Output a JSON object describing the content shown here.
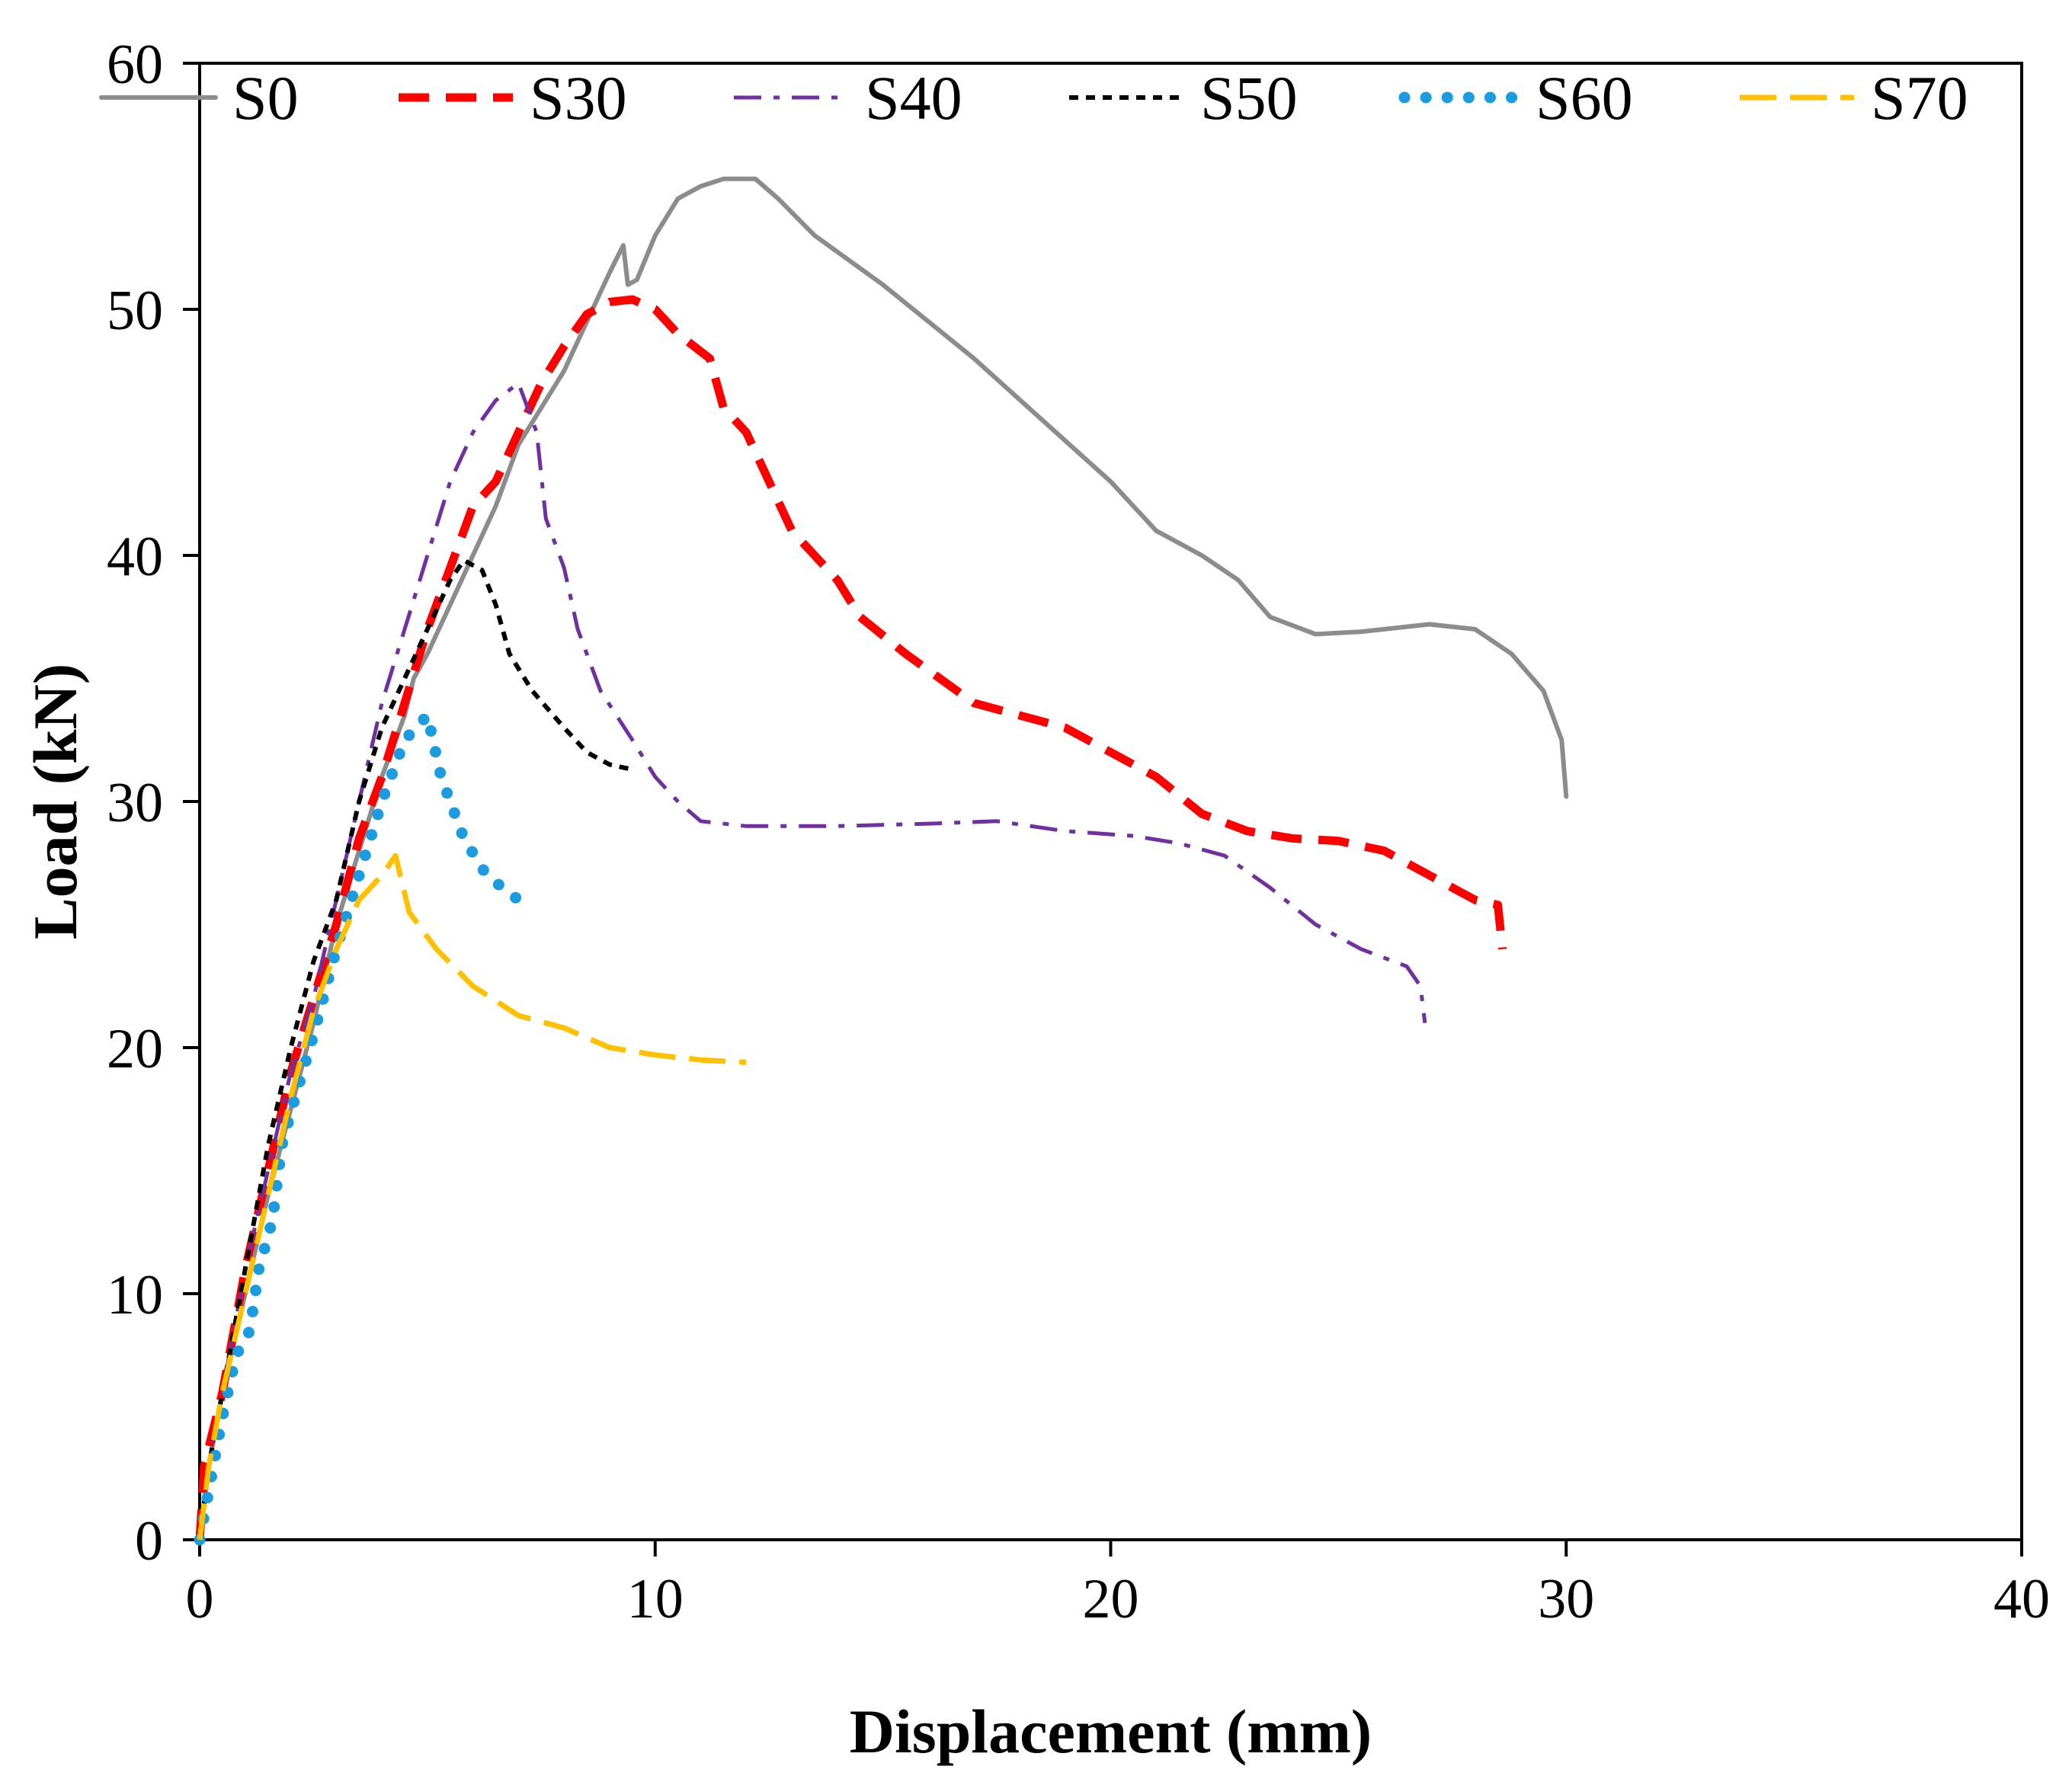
{
  "chart_data": {
    "type": "line",
    "title": "",
    "xlabel": "Displacement (mm)",
    "ylabel": "Load (kN)",
    "xlim": [
      0,
      40
    ],
    "ylim": [
      0,
      60
    ],
    "xticks": [
      0,
      10,
      20,
      30,
      40
    ],
    "yticks": [
      0,
      10,
      20,
      30,
      40,
      50,
      60
    ],
    "grid": false,
    "legend_position": "top",
    "series": [
      {
        "name": "S0",
        "color": "#8c8c8c",
        "style": "solid",
        "points": [
          [
            0,
            0
          ],
          [
            0.2,
            3
          ],
          [
            0.5,
            6
          ],
          [
            1,
            10
          ],
          [
            1.5,
            14
          ],
          [
            2,
            17.5
          ],
          [
            2.5,
            21
          ],
          [
            3,
            25
          ],
          [
            3.5,
            28
          ],
          [
            4,
            31
          ],
          [
            4.5,
            33.5
          ],
          [
            4.7,
            35
          ],
          [
            5,
            36
          ],
          [
            5.5,
            38
          ],
          [
            6,
            40
          ],
          [
            6.5,
            42
          ],
          [
            7,
            44.5
          ],
          [
            7.5,
            46
          ],
          [
            8,
            47.5
          ],
          [
            8.5,
            49.5
          ],
          [
            9,
            51.5
          ],
          [
            9.3,
            52.6
          ],
          [
            9.4,
            51
          ],
          [
            9.6,
            51.2
          ],
          [
            10,
            53
          ],
          [
            10.5,
            54.5
          ],
          [
            11,
            55
          ],
          [
            11.5,
            55.3
          ],
          [
            12.2,
            55.3
          ],
          [
            12.7,
            54.5
          ],
          [
            13.5,
            53
          ],
          [
            15,
            51
          ],
          [
            17,
            48
          ],
          [
            18.5,
            45.5
          ],
          [
            20,
            43
          ],
          [
            21,
            41
          ],
          [
            22,
            40
          ],
          [
            22.8,
            39
          ],
          [
            23.5,
            37.5
          ],
          [
            24.5,
            36.8
          ],
          [
            25.5,
            36.9
          ],
          [
            27,
            37.2
          ],
          [
            28,
            37
          ],
          [
            28.8,
            36
          ],
          [
            29.5,
            34.5
          ],
          [
            29.9,
            32.5
          ],
          [
            30,
            30.2
          ]
        ]
      },
      {
        "name": "S30",
        "color": "#ff0000",
        "style": "dashed",
        "points": [
          [
            0,
            0
          ],
          [
            0.1,
            3
          ],
          [
            0.5,
            6
          ],
          [
            1,
            11
          ],
          [
            1.5,
            15
          ],
          [
            2,
            19
          ],
          [
            2.5,
            22
          ],
          [
            3,
            25
          ],
          [
            3.5,
            28.5
          ],
          [
            4,
            31
          ],
          [
            4.5,
            34
          ],
          [
            5,
            37
          ],
          [
            5.5,
            39.5
          ],
          [
            6,
            42
          ],
          [
            6.5,
            43
          ],
          [
            7,
            45
          ],
          [
            7.5,
            47
          ],
          [
            8,
            48.5
          ],
          [
            8.5,
            49.8
          ],
          [
            9,
            50.3
          ],
          [
            9.5,
            50.4
          ],
          [
            10,
            50
          ],
          [
            10.5,
            49
          ],
          [
            11.2,
            48
          ],
          [
            11.5,
            46
          ],
          [
            12,
            45
          ],
          [
            12.5,
            43
          ],
          [
            13,
            41
          ],
          [
            14,
            39
          ],
          [
            14.5,
            37.5
          ],
          [
            15.5,
            36
          ],
          [
            17,
            34
          ],
          [
            18,
            33.5
          ],
          [
            19,
            33
          ],
          [
            20,
            32
          ],
          [
            21,
            31
          ],
          [
            22,
            29.5
          ],
          [
            23,
            28.8
          ],
          [
            24,
            28.5
          ],
          [
            25,
            28.4
          ],
          [
            26,
            28
          ],
          [
            27,
            27
          ],
          [
            28,
            26
          ],
          [
            28.5,
            25.8
          ],
          [
            28.6,
            24
          ]
        ]
      },
      {
        "name": "S40",
        "color": "#7030a0",
        "style": "dashdot",
        "points": [
          [
            0,
            0
          ],
          [
            0.2,
            3
          ],
          [
            0.5,
            6
          ],
          [
            1,
            11
          ],
          [
            1.5,
            15
          ],
          [
            2,
            19
          ],
          [
            2.5,
            22
          ],
          [
            3,
            26
          ],
          [
            3.5,
            30
          ],
          [
            4,
            34
          ],
          [
            4.5,
            37
          ],
          [
            5,
            40
          ],
          [
            5.5,
            43
          ],
          [
            6,
            45
          ],
          [
            6.5,
            46.3
          ],
          [
            7,
            47
          ],
          [
            7.4,
            45
          ],
          [
            7.6,
            41.5
          ],
          [
            8,
            39.5
          ],
          [
            8.3,
            37
          ],
          [
            8.8,
            34.5
          ],
          [
            9.5,
            32.5
          ],
          [
            10,
            31
          ],
          [
            10.5,
            30
          ],
          [
            11,
            29.2
          ],
          [
            12,
            29
          ],
          [
            14,
            29
          ],
          [
            16,
            29.1
          ],
          [
            17.5,
            29.2
          ],
          [
            19,
            28.8
          ],
          [
            20.5,
            28.6
          ],
          [
            21.5,
            28.3
          ],
          [
            22.5,
            27.8
          ],
          [
            23.5,
            26.5
          ],
          [
            24.5,
            25
          ],
          [
            25.5,
            24
          ],
          [
            26.5,
            23.3
          ],
          [
            26.8,
            22.5
          ],
          [
            26.9,
            21
          ]
        ]
      },
      {
        "name": "S50",
        "color": "#000000",
        "style": "shortdash",
        "points": [
          [
            0,
            0
          ],
          [
            0.2,
            3
          ],
          [
            0.5,
            6
          ],
          [
            1,
            11
          ],
          [
            1.5,
            16
          ],
          [
            2,
            20
          ],
          [
            2.5,
            23.5
          ],
          [
            3,
            26
          ],
          [
            3.5,
            30
          ],
          [
            4,
            33
          ],
          [
            4.5,
            35
          ],
          [
            5,
            37
          ],
          [
            5.5,
            39
          ],
          [
            5.8,
            39.8
          ],
          [
            6.2,
            39.4
          ],
          [
            6.5,
            38
          ],
          [
            6.8,
            36
          ],
          [
            7.3,
            34.5
          ],
          [
            8,
            33
          ],
          [
            8.5,
            32
          ],
          [
            9,
            31.5
          ],
          [
            9.5,
            31.3
          ]
        ]
      },
      {
        "name": "S60",
        "color": "#1b9be0",
        "style": "dotted",
        "points": [
          [
            0,
            0
          ],
          [
            0.2,
            2
          ],
          [
            0.5,
            5
          ],
          [
            0.8,
            7.5
          ],
          [
            1.1,
            8.5
          ],
          [
            1.3,
            11
          ],
          [
            1.6,
            13
          ],
          [
            1.8,
            16
          ],
          [
            2.1,
            18
          ],
          [
            2.5,
            20.5
          ],
          [
            3,
            24
          ],
          [
            3.5,
            27
          ],
          [
            4,
            30
          ],
          [
            4.5,
            32.5
          ],
          [
            5,
            33.5
          ],
          [
            5.3,
            31
          ],
          [
            5.8,
            28.5
          ],
          [
            6.3,
            27
          ],
          [
            7,
            26
          ]
        ]
      },
      {
        "name": "S70",
        "color": "#ffc000",
        "style": "longdash",
        "points": [
          [
            0,
            0
          ],
          [
            0.2,
            3
          ],
          [
            0.5,
            6
          ],
          [
            1,
            10
          ],
          [
            1.5,
            14
          ],
          [
            2,
            18
          ],
          [
            2.5,
            21.5
          ],
          [
            3,
            24
          ],
          [
            3.5,
            26
          ],
          [
            4,
            27
          ],
          [
            4.3,
            27.8
          ],
          [
            4.6,
            25.5
          ],
          [
            5.2,
            24
          ],
          [
            6,
            22.5
          ],
          [
            7,
            21.3
          ],
          [
            8,
            20.8
          ],
          [
            9,
            20
          ],
          [
            10,
            19.7
          ],
          [
            11,
            19.5
          ],
          [
            12,
            19.4
          ]
        ]
      }
    ]
  }
}
